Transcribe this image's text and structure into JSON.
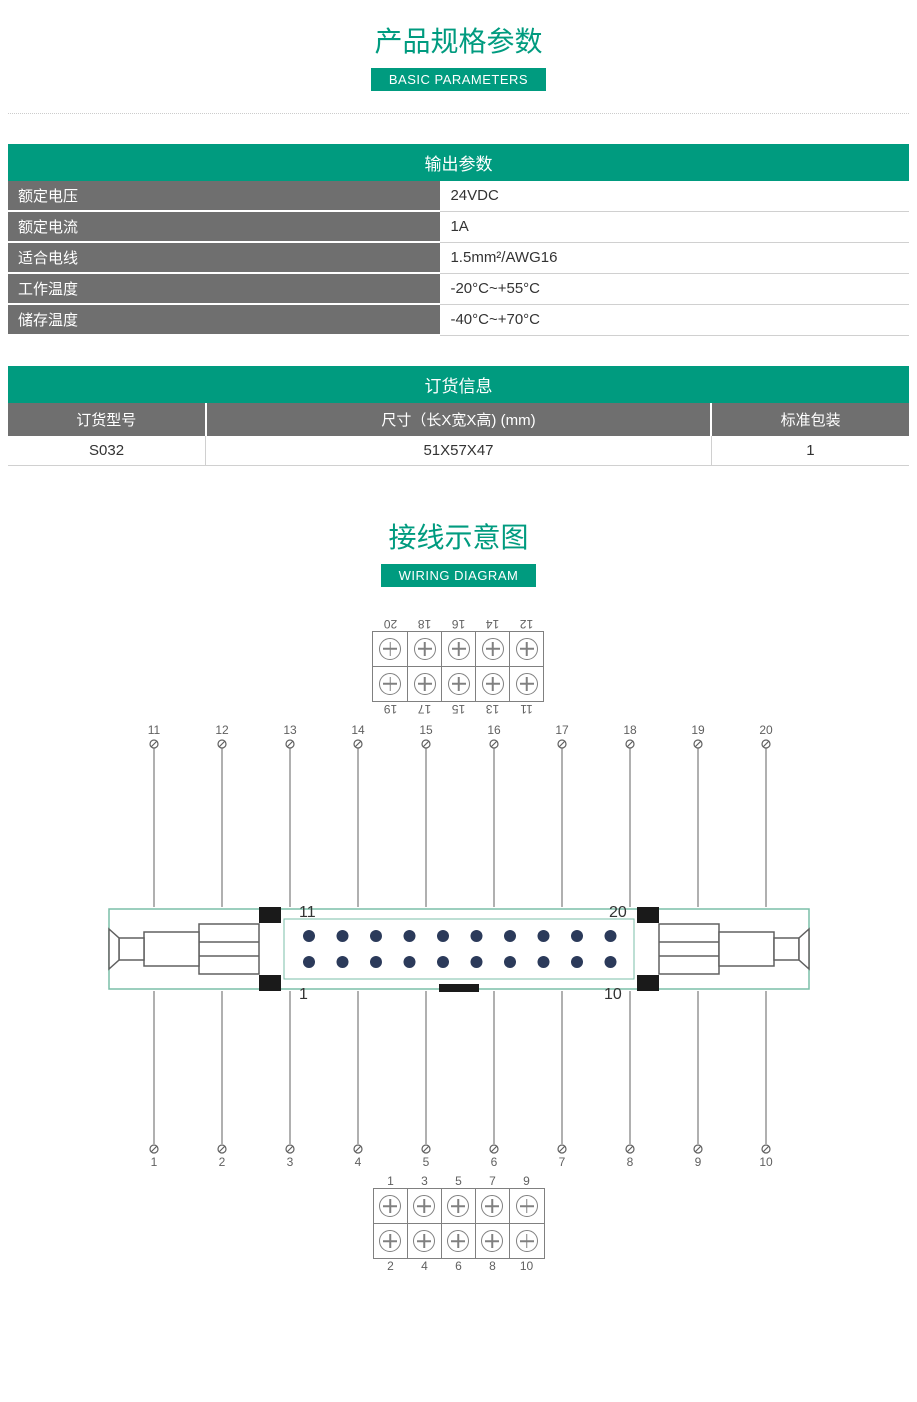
{
  "colors": {
    "teal": "#009b7f",
    "gray_header": "#6f6f6f",
    "text": "#333333",
    "border_light": "#d0d0d0",
    "diagram_line": "#606060",
    "pin_dot": "#2b3a5a",
    "board_outline": "#7bbfa8"
  },
  "section1": {
    "title": "产品规格参数",
    "subtitle": "BASIC PARAMETERS"
  },
  "spec_table": {
    "header": "输出参数",
    "rows": [
      {
        "label": "额定电压",
        "value": "24VDC"
      },
      {
        "label": "额定电流",
        "value": "1A"
      },
      {
        "label": "适合电线",
        "value": "1.5mm²/AWG16"
      },
      {
        "label": "工作温度",
        "value": "-20°C~+55°C"
      },
      {
        "label": "储存温度",
        "value": "-40°C~+70°C"
      }
    ]
  },
  "order_table": {
    "header": "订货信息",
    "columns": [
      "订货型号",
      "尺寸（长X宽X高) (mm)",
      "标准包装"
    ],
    "rows": [
      [
        "S032",
        "51X57X47",
        "1"
      ]
    ]
  },
  "section2": {
    "title": "接线示意图",
    "subtitle": "WIRING DIAGRAM"
  },
  "diagram": {
    "top_block": {
      "row1_labels": [
        "11",
        "13",
        "15",
        "17",
        "19"
      ],
      "row2_labels": [
        "12",
        "14",
        "16",
        "18",
        "20"
      ]
    },
    "bottom_block": {
      "row1_labels": [
        "1",
        "3",
        "5",
        "7",
        "9"
      ],
      "row2_labels": [
        "2",
        "4",
        "6",
        "8",
        "10"
      ]
    },
    "upper_pins": [
      "11",
      "12",
      "13",
      "14",
      "15",
      "16",
      "17",
      "18",
      "19",
      "20"
    ],
    "lower_pins": [
      "1",
      "2",
      "3",
      "4",
      "5",
      "6",
      "7",
      "8",
      "9",
      "10"
    ],
    "connector_labels": {
      "top_left": "11",
      "top_right": "20",
      "bottom_left": "1",
      "bottom_right": "10"
    }
  }
}
